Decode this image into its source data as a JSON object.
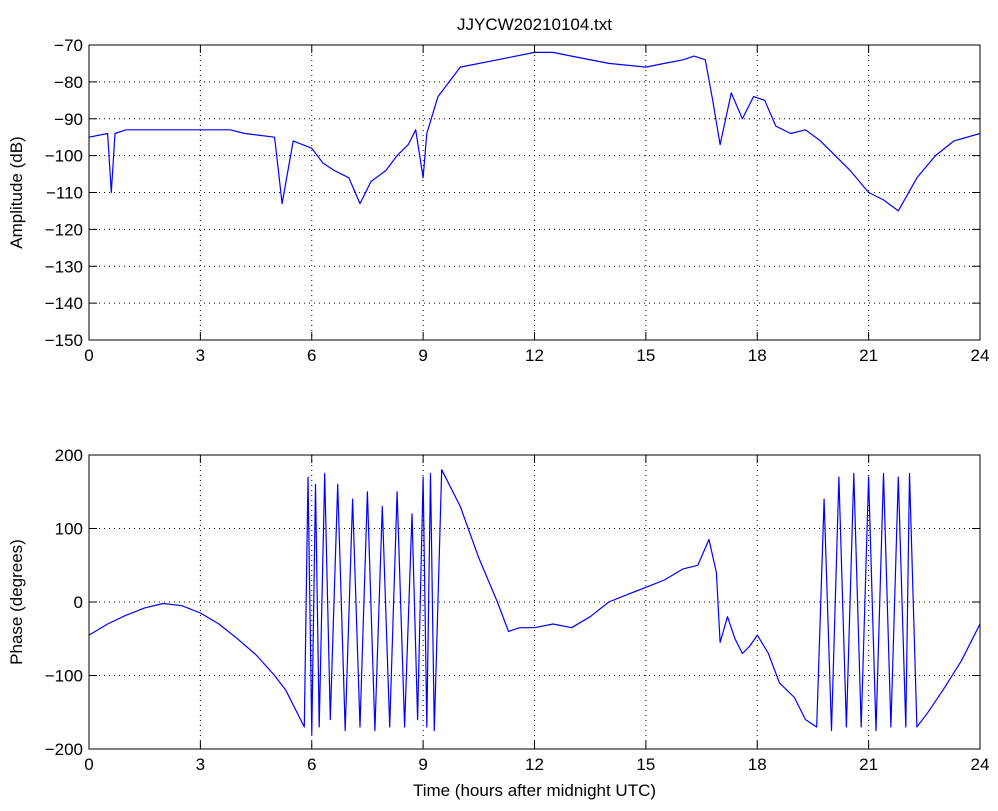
{
  "chart_data": [
    {
      "type": "line",
      "title": "JJYCW20210104.txt",
      "xlabel": "",
      "ylabel": "Amplitude (dB)",
      "xlim": [
        0,
        24
      ],
      "ylim": [
        -150,
        -70
      ],
      "xticks": [
        0,
        3,
        6,
        9,
        12,
        15,
        18,
        21,
        24
      ],
      "yticks": [
        -150,
        -140,
        -130,
        -120,
        -110,
        -100,
        -90,
        -80,
        -70
      ],
      "xtick_labels": [
        "0",
        "3",
        "6",
        "9",
        "12",
        "15",
        "18",
        "21",
        "24"
      ],
      "ytick_labels": [
        "−150",
        "−140",
        "−130",
        "−120",
        "−110",
        "−100",
        "−90",
        "−80",
        "−70"
      ],
      "grid": true,
      "series": [
        {
          "color": "#0000ff",
          "x": [
            0,
            0.5,
            0.6,
            0.7,
            1,
            2,
            3,
            3.8,
            4.2,
            5,
            5.2,
            5.5,
            6,
            6.3,
            6.6,
            7,
            7.3,
            7.6,
            8,
            8.3,
            8.6,
            8.8,
            9,
            9.1,
            9.4,
            10,
            11,
            12,
            12.5,
            13,
            14,
            15,
            15.5,
            16,
            16.3,
            16.6,
            16.8,
            17,
            17.3,
            17.6,
            17.9,
            18.2,
            18.5,
            18.9,
            19.3,
            19.7,
            20.1,
            20.5,
            21,
            21.4,
            21.8,
            22.3,
            22.8,
            23.3,
            24
          ],
          "y": [
            -95,
            -94,
            -110,
            -94,
            -93,
            -93,
            -93,
            -93,
            -94,
            -95,
            -113,
            -96,
            -98,
            -102,
            -104,
            -106,
            -113,
            -107,
            -104,
            -100,
            -97,
            -93,
            -106,
            -94,
            -84,
            -76,
            -74,
            -72,
            -72,
            -73,
            -75,
            -76,
            -75,
            -74,
            -73,
            -74,
            -85,
            -97,
            -83,
            -90,
            -84,
            -85,
            -92,
            -94,
            -93,
            -96,
            -100,
            -104,
            -110,
            -112,
            -115,
            -106,
            -100,
            -96,
            -94
          ]
        }
      ]
    },
    {
      "type": "line",
      "title": "",
      "xlabel": "Time (hours after midnight UTC)",
      "ylabel": "Phase (degrees)",
      "xlim": [
        0,
        24
      ],
      "ylim": [
        -200,
        200
      ],
      "xticks": [
        0,
        3,
        6,
        9,
        12,
        15,
        18,
        21,
        24
      ],
      "yticks": [
        -200,
        -100,
        0,
        100,
        200
      ],
      "xtick_labels": [
        "0",
        "3",
        "6",
        "9",
        "12",
        "15",
        "18",
        "21",
        "24"
      ],
      "ytick_labels": [
        "−200",
        "−100",
        "0",
        "100",
        "200"
      ],
      "grid": true,
      "series": [
        {
          "color": "#0000ff",
          "x": [
            0,
            0.5,
            1,
            1.5,
            2,
            2.5,
            3,
            3.5,
            4,
            4.5,
            5,
            5.3,
            5.6,
            5.8,
            5.9,
            6.0,
            6.1,
            6.2,
            6.35,
            6.5,
            6.7,
            6.9,
            7.1,
            7.3,
            7.5,
            7.7,
            7.9,
            8.1,
            8.3,
            8.5,
            8.7,
            8.85,
            9.0,
            9.1,
            9.2,
            9.3,
            9.5,
            10,
            10.5,
            11,
            11.3,
            11.6,
            12,
            12.5,
            13,
            13.5,
            14,
            14.5,
            15,
            15.5,
            16,
            16.4,
            16.7,
            16.9,
            17.0,
            17.2,
            17.4,
            17.6,
            17.8,
            18.0,
            18.3,
            18.6,
            19,
            19.3,
            19.6,
            19.8,
            20.0,
            20.2,
            20.4,
            20.6,
            20.8,
            21.0,
            21.2,
            21.4,
            21.6,
            21.8,
            22.0,
            22.1,
            22.3,
            22.6,
            23,
            23.5,
            24
          ],
          "y": [
            -45,
            -30,
            -18,
            -8,
            -2,
            -5,
            -15,
            -30,
            -50,
            -72,
            -100,
            -120,
            -150,
            -170,
            170,
            -180,
            160,
            -170,
            175,
            -160,
            160,
            -175,
            140,
            -170,
            150,
            -175,
            130,
            -170,
            150,
            -170,
            120,
            -160,
            170,
            -170,
            175,
            -175,
            180,
            130,
            60,
            0,
            -40,
            -35,
            -35,
            -30,
            -35,
            -20,
            0,
            10,
            20,
            30,
            45,
            50,
            85,
            40,
            -55,
            -20,
            -50,
            -70,
            -60,
            -45,
            -70,
            -110,
            -130,
            -160,
            -170,
            140,
            -175,
            170,
            -170,
            175,
            -170,
            170,
            -175,
            175,
            -170,
            170,
            -170,
            175,
            -170,
            -150,
            -120,
            -80,
            -30
          ]
        }
      ]
    }
  ]
}
